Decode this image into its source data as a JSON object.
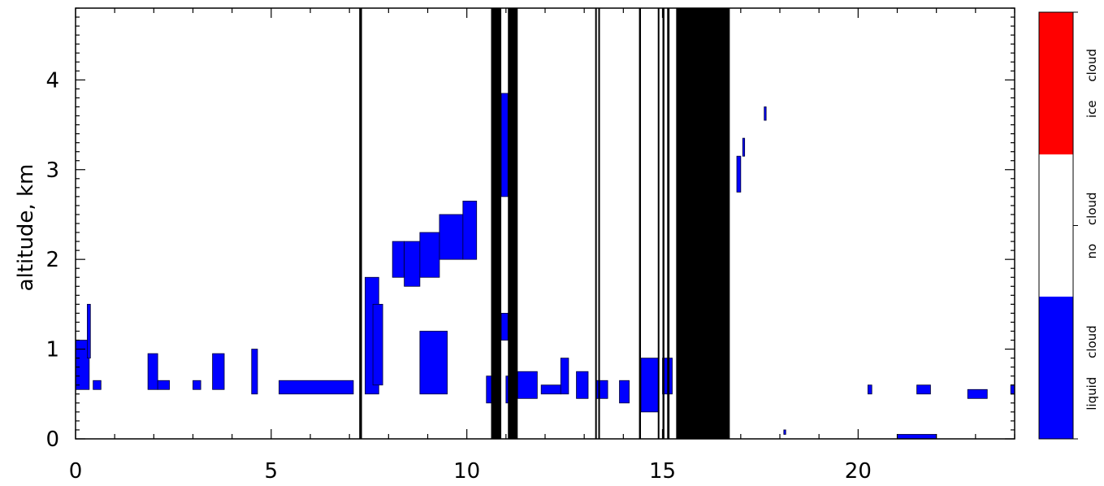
{
  "chart_data": {
    "type": "heatmap",
    "title": "",
    "xlabel": "",
    "ylabel": "altitude, km",
    "xlim": [
      0,
      24
    ],
    "ylim": [
      0,
      4.8
    ],
    "x_ticks": [
      0,
      5,
      10,
      15,
      20
    ],
    "x_tick_labels": [
      "0",
      "5",
      "10",
      "15",
      "20"
    ],
    "y_ticks": [
      0,
      1,
      2,
      3,
      4
    ],
    "y_tick_labels": [
      "0",
      "1",
      "2",
      "3",
      "4"
    ],
    "colors": {
      "liquid_cloud": "#0000ff",
      "no_cloud": "#ffffff",
      "ice_cloud": "#ff0000",
      "missing_data": "#000000"
    },
    "colorbar": {
      "categories": [
        "liquid cloud",
        "no cloud",
        "ice cloud"
      ],
      "colors": [
        "#0000ff",
        "#ffffff",
        "#ff0000"
      ]
    },
    "missing_data_intervals": [
      [
        7.25,
        7.32
      ],
      [
        10.62,
        10.88
      ],
      [
        11.05,
        11.3
      ],
      [
        13.28,
        13.3
      ],
      [
        13.36,
        13.38
      ],
      [
        14.4,
        14.45
      ],
      [
        14.88,
        14.9
      ],
      [
        15.0,
        15.05
      ],
      [
        15.12,
        15.18
      ],
      [
        15.35,
        16.72
      ]
    ],
    "liquid_cloud_regions": [
      {
        "x": [
          0.0,
          0.35
        ],
        "y": [
          0.55,
          1.1
        ]
      },
      {
        "x": [
          0.3,
          0.38
        ],
        "y": [
          0.9,
          1.5
        ]
      },
      {
        "x": [
          0.45,
          0.65
        ],
        "y": [
          0.55,
          0.65
        ]
      },
      {
        "x": [
          1.85,
          2.1
        ],
        "y": [
          0.55,
          0.95
        ]
      },
      {
        "x": [
          2.1,
          2.4
        ],
        "y": [
          0.55,
          0.65
        ]
      },
      {
        "x": [
          3.0,
          3.2
        ],
        "y": [
          0.55,
          0.65
        ]
      },
      {
        "x": [
          3.5,
          3.8
        ],
        "y": [
          0.55,
          0.95
        ]
      },
      {
        "x": [
          4.5,
          4.65
        ],
        "y": [
          0.5,
          1.0
        ]
      },
      {
        "x": [
          5.2,
          7.1
        ],
        "y": [
          0.5,
          0.65
        ]
      },
      {
        "x": [
          7.4,
          7.75
        ],
        "y": [
          0.5,
          1.8
        ]
      },
      {
        "x": [
          7.6,
          7.85
        ],
        "y": [
          0.6,
          1.5
        ]
      },
      {
        "x": [
          8.1,
          8.4
        ],
        "y": [
          1.8,
          2.2
        ]
      },
      {
        "x": [
          8.4,
          8.8
        ],
        "y": [
          1.7,
          2.2
        ]
      },
      {
        "x": [
          8.8,
          9.3
        ],
        "y": [
          1.8,
          2.3
        ]
      },
      {
        "x": [
          9.3,
          9.9
        ],
        "y": [
          2.0,
          2.5
        ]
      },
      {
        "x": [
          9.9,
          10.25
        ],
        "y": [
          2.0,
          2.65
        ]
      },
      {
        "x": [
          8.8,
          9.5
        ],
        "y": [
          0.5,
          1.2
        ]
      },
      {
        "x": [
          10.5,
          10.65
        ],
        "y": [
          0.4,
          0.7
        ]
      },
      {
        "x": [
          10.88,
          11.05
        ],
        "y": [
          2.7,
          3.85
        ]
      },
      {
        "x": [
          10.88,
          11.05
        ],
        "y": [
          1.1,
          1.4
        ]
      },
      {
        "x": [
          11.0,
          11.1
        ],
        "y": [
          0.4,
          0.7
        ]
      },
      {
        "x": [
          11.3,
          11.8
        ],
        "y": [
          0.45,
          0.75
        ]
      },
      {
        "x": [
          11.9,
          12.4
        ],
        "y": [
          0.5,
          0.6
        ]
      },
      {
        "x": [
          12.4,
          12.6
        ],
        "y": [
          0.5,
          0.9
        ]
      },
      {
        "x": [
          12.8,
          13.1
        ],
        "y": [
          0.45,
          0.75
        ]
      },
      {
        "x": [
          13.3,
          13.6
        ],
        "y": [
          0.45,
          0.65
        ]
      },
      {
        "x": [
          13.9,
          14.15
        ],
        "y": [
          0.4,
          0.65
        ]
      },
      {
        "x": [
          14.45,
          14.9
        ],
        "y": [
          0.3,
          0.9
        ]
      },
      {
        "x": [
          15.0,
          15.25
        ],
        "y": [
          0.5,
          0.9
        ]
      },
      {
        "x": [
          16.9,
          17.0
        ],
        "y": [
          2.75,
          3.15
        ]
      },
      {
        "x": [
          17.05,
          17.1
        ],
        "y": [
          3.15,
          3.35
        ]
      },
      {
        "x": [
          17.6,
          17.65
        ],
        "y": [
          3.55,
          3.7
        ]
      },
      {
        "x": [
          18.1,
          18.15
        ],
        "y": [
          0.05,
          0.1
        ]
      },
      {
        "x": [
          20.25,
          20.35
        ],
        "y": [
          0.5,
          0.6
        ]
      },
      {
        "x": [
          21.0,
          22.0
        ],
        "y": [
          0.0,
          0.05
        ]
      },
      {
        "x": [
          21.5,
          21.85
        ],
        "y": [
          0.5,
          0.6
        ]
      },
      {
        "x": [
          22.8,
          23.3
        ],
        "y": [
          0.45,
          0.55
        ]
      },
      {
        "x": [
          23.9,
          24.0
        ],
        "y": [
          0.5,
          0.6
        ]
      }
    ]
  }
}
